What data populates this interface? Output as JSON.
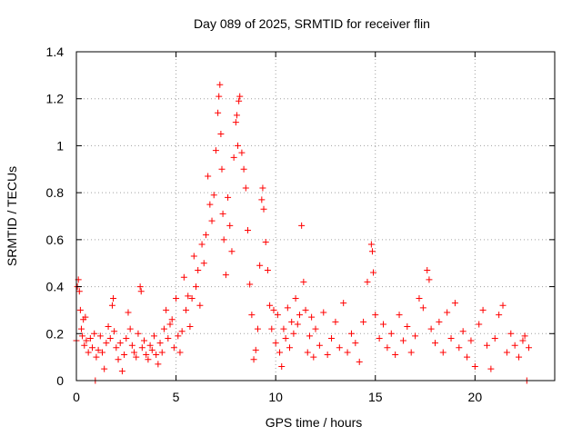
{
  "chart_data": {
    "type": "scatter",
    "title": "Day 089 of 2025, SRMTID for receiver flin",
    "xlabel": "GPS time / hours",
    "ylabel": "SRMTID / TECUs",
    "xlim": [
      0,
      24
    ],
    "ylim": [
      0,
      1.4
    ],
    "xticks": [
      0,
      5,
      10,
      15,
      20
    ],
    "xtick_labels": [
      "0",
      "5",
      "10",
      "15",
      "20"
    ],
    "yticks": [
      0,
      0.2,
      0.4,
      0.6,
      0.8,
      1.0,
      1.2,
      1.4
    ],
    "ytick_labels": [
      "0",
      "0.2",
      "0.4",
      "0.6",
      "0.8",
      "1",
      "1.2",
      "1.4"
    ],
    "grid": true,
    "marker": "+",
    "color": "#ff0000",
    "series": [
      {
        "name": "SRMTID",
        "points": [
          [
            0.0,
            0.17
          ],
          [
            0.05,
            0.4
          ],
          [
            0.1,
            0.43
          ],
          [
            0.15,
            0.38
          ],
          [
            0.2,
            0.3
          ],
          [
            0.25,
            0.22
          ],
          [
            0.3,
            0.19
          ],
          [
            0.35,
            0.26
          ],
          [
            0.4,
            0.15
          ],
          [
            0.45,
            0.27
          ],
          [
            0.5,
            0.17
          ],
          [
            0.6,
            0.12
          ],
          [
            0.7,
            0.18
          ],
          [
            0.8,
            0.14
          ],
          [
            0.9,
            0.2
          ],
          [
            0.95,
            0.0
          ],
          [
            1.0,
            0.1
          ],
          [
            1.1,
            0.13
          ],
          [
            1.2,
            0.19
          ],
          [
            1.3,
            0.12
          ],
          [
            1.4,
            0.05
          ],
          [
            1.5,
            0.16
          ],
          [
            1.6,
            0.23
          ],
          [
            1.7,
            0.18
          ],
          [
            1.8,
            0.32
          ],
          [
            1.85,
            0.35
          ],
          [
            1.9,
            0.21
          ],
          [
            2.0,
            0.14
          ],
          [
            2.1,
            0.09
          ],
          [
            2.2,
            0.16
          ],
          [
            2.3,
            0.04
          ],
          [
            2.4,
            0.11
          ],
          [
            2.5,
            0.18
          ],
          [
            2.6,
            0.29
          ],
          [
            2.7,
            0.22
          ],
          [
            2.8,
            0.15
          ],
          [
            2.9,
            0.12
          ],
          [
            3.0,
            0.1
          ],
          [
            3.1,
            0.2
          ],
          [
            3.2,
            0.4
          ],
          [
            3.25,
            0.38
          ],
          [
            3.3,
            0.14
          ],
          [
            3.4,
            0.17
          ],
          [
            3.5,
            0.11
          ],
          [
            3.6,
            0.09
          ],
          [
            3.7,
            0.15
          ],
          [
            3.8,
            0.13
          ],
          [
            3.9,
            0.19
          ],
          [
            4.0,
            0.11
          ],
          [
            4.1,
            0.07
          ],
          [
            4.2,
            0.16
          ],
          [
            4.3,
            0.12
          ],
          [
            4.4,
            0.22
          ],
          [
            4.5,
            0.3
          ],
          [
            4.6,
            0.18
          ],
          [
            4.7,
            0.24
          ],
          [
            4.8,
            0.26
          ],
          [
            4.9,
            0.14
          ],
          [
            5.0,
            0.35
          ],
          [
            5.1,
            0.19
          ],
          [
            5.2,
            0.12
          ],
          [
            5.3,
            0.21
          ],
          [
            5.4,
            0.44
          ],
          [
            5.5,
            0.3
          ],
          [
            5.6,
            0.36
          ],
          [
            5.7,
            0.23
          ],
          [
            5.8,
            0.35
          ],
          [
            5.9,
            0.53
          ],
          [
            6.0,
            0.4
          ],
          [
            6.1,
            0.47
          ],
          [
            6.2,
            0.32
          ],
          [
            6.3,
            0.58
          ],
          [
            6.4,
            0.5
          ],
          [
            6.5,
            0.62
          ],
          [
            6.6,
            0.87
          ],
          [
            6.7,
            0.75
          ],
          [
            6.8,
            0.68
          ],
          [
            6.9,
            0.79
          ],
          [
            7.0,
            0.98
          ],
          [
            7.1,
            1.14
          ],
          [
            7.15,
            1.21
          ],
          [
            7.2,
            1.26
          ],
          [
            7.25,
            1.05
          ],
          [
            7.3,
            0.9
          ],
          [
            7.35,
            0.71
          ],
          [
            7.4,
            0.6
          ],
          [
            7.5,
            0.45
          ],
          [
            7.6,
            0.78
          ],
          [
            7.7,
            0.66
          ],
          [
            7.8,
            0.55
          ],
          [
            7.9,
            0.95
          ],
          [
            8.0,
            1.1
          ],
          [
            8.05,
            1.13
          ],
          [
            8.1,
            1.0
          ],
          [
            8.15,
            1.19
          ],
          [
            8.2,
            1.21
          ],
          [
            8.3,
            0.97
          ],
          [
            8.4,
            0.9
          ],
          [
            8.5,
            0.82
          ],
          [
            8.6,
            0.64
          ],
          [
            8.7,
            0.41
          ],
          [
            8.8,
            0.28
          ],
          [
            8.9,
            0.09
          ],
          [
            9.0,
            0.13
          ],
          [
            9.1,
            0.22
          ],
          [
            9.2,
            0.49
          ],
          [
            9.3,
            0.77
          ],
          [
            9.35,
            0.82
          ],
          [
            9.4,
            0.73
          ],
          [
            9.5,
            0.59
          ],
          [
            9.6,
            0.47
          ],
          [
            9.7,
            0.32
          ],
          [
            9.8,
            0.22
          ],
          [
            9.9,
            0.3
          ],
          [
            10.0,
            0.16
          ],
          [
            10.1,
            0.28
          ],
          [
            10.2,
            0.12
          ],
          [
            10.3,
            0.06
          ],
          [
            10.4,
            0.22
          ],
          [
            10.5,
            0.18
          ],
          [
            10.6,
            0.31
          ],
          [
            10.7,
            0.14
          ],
          [
            10.8,
            0.25
          ],
          [
            10.9,
            0.2
          ],
          [
            11.0,
            0.35
          ],
          [
            11.1,
            0.24
          ],
          [
            11.2,
            0.28
          ],
          [
            11.3,
            0.66
          ],
          [
            11.4,
            0.42
          ],
          [
            11.5,
            0.3
          ],
          [
            11.6,
            0.12
          ],
          [
            11.7,
            0.19
          ],
          [
            11.8,
            0.27
          ],
          [
            11.9,
            0.1
          ],
          [
            12.0,
            0.22
          ],
          [
            12.2,
            0.15
          ],
          [
            12.4,
            0.29
          ],
          [
            12.6,
            0.11
          ],
          [
            12.8,
            0.18
          ],
          [
            13.0,
            0.25
          ],
          [
            13.2,
            0.14
          ],
          [
            13.4,
            0.33
          ],
          [
            13.6,
            0.12
          ],
          [
            13.8,
            0.2
          ],
          [
            14.0,
            0.16
          ],
          [
            14.2,
            0.08
          ],
          [
            14.4,
            0.25
          ],
          [
            14.6,
            0.42
          ],
          [
            14.8,
            0.58
          ],
          [
            14.85,
            0.55
          ],
          [
            14.9,
            0.46
          ],
          [
            15.0,
            0.28
          ],
          [
            15.2,
            0.18
          ],
          [
            15.4,
            0.24
          ],
          [
            15.6,
            0.14
          ],
          [
            15.8,
            0.2
          ],
          [
            16.0,
            0.11
          ],
          [
            16.2,
            0.28
          ],
          [
            16.4,
            0.17
          ],
          [
            16.6,
            0.23
          ],
          [
            16.8,
            0.12
          ],
          [
            17.0,
            0.19
          ],
          [
            17.2,
            0.35
          ],
          [
            17.4,
            0.31
          ],
          [
            17.6,
            0.47
          ],
          [
            17.7,
            0.43
          ],
          [
            17.8,
            0.22
          ],
          [
            18.0,
            0.16
          ],
          [
            18.2,
            0.25
          ],
          [
            18.4,
            0.12
          ],
          [
            18.6,
            0.29
          ],
          [
            18.8,
            0.18
          ],
          [
            19.0,
            0.33
          ],
          [
            19.2,
            0.14
          ],
          [
            19.4,
            0.21
          ],
          [
            19.6,
            0.1
          ],
          [
            19.8,
            0.17
          ],
          [
            20.0,
            0.06
          ],
          [
            20.2,
            0.24
          ],
          [
            20.4,
            0.3
          ],
          [
            20.6,
            0.15
          ],
          [
            20.8,
            0.05
          ],
          [
            21.0,
            0.18
          ],
          [
            21.2,
            0.28
          ],
          [
            21.4,
            0.32
          ],
          [
            21.6,
            0.12
          ],
          [
            21.8,
            0.2
          ],
          [
            22.0,
            0.15
          ],
          [
            22.2,
            0.1
          ],
          [
            22.4,
            0.17
          ],
          [
            22.5,
            0.19
          ],
          [
            22.6,
            0.0
          ],
          [
            22.7,
            0.14
          ]
        ]
      }
    ]
  }
}
